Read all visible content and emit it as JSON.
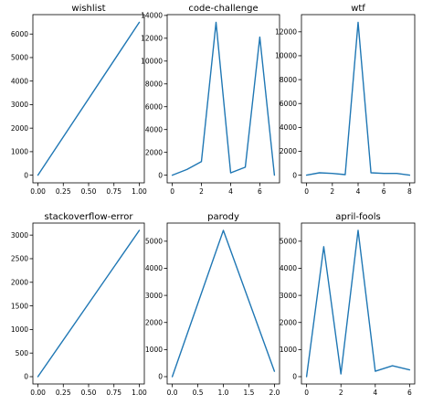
{
  "chart_data": [
    {
      "type": "line",
      "title": "wishlist",
      "x": [
        0,
        1
      ],
      "y": [
        0,
        6500
      ],
      "xlim": [
        -0.05,
        1.05
      ],
      "ylim": [
        -325,
        6825
      ],
      "xticks": [
        0.0,
        0.25,
        0.5,
        0.75,
        1.0
      ],
      "xtick_labels": [
        "0.00",
        "0.25",
        "0.50",
        "0.75",
        "1.00"
      ],
      "yticks": [
        0,
        1000,
        2000,
        3000,
        4000,
        5000,
        6000
      ],
      "ytick_labels": [
        "0",
        "1000",
        "2000",
        "3000",
        "4000",
        "5000",
        "6000"
      ],
      "color": "#1f77b4",
      "grid": false
    },
    {
      "type": "line",
      "title": "code-challenge",
      "x": [
        0,
        1,
        2,
        3,
        4,
        5,
        6,
        7
      ],
      "y": [
        0,
        500,
        1200,
        13400,
        200,
        700,
        12100,
        0
      ],
      "xlim": [
        -0.35,
        7.35
      ],
      "ylim": [
        -670,
        14070
      ],
      "xticks": [
        0,
        2,
        4,
        6
      ],
      "xtick_labels": [
        "0",
        "2",
        "4",
        "6"
      ],
      "yticks": [
        0,
        2000,
        4000,
        6000,
        8000,
        10000,
        12000,
        14000
      ],
      "ytick_labels": [
        "0",
        "2000",
        "4000",
        "6000",
        "8000",
        "10000",
        "12000",
        "14000"
      ],
      "color": "#1f77b4",
      "grid": false
    },
    {
      "type": "line",
      "title": "wtf",
      "x": [
        0,
        1,
        2,
        3,
        4,
        5,
        6,
        7,
        8
      ],
      "y": [
        0,
        200,
        150,
        50,
        12800,
        200,
        150,
        150,
        0
      ],
      "xlim": [
        -0.4,
        8.4
      ],
      "ylim": [
        -640,
        13440
      ],
      "xticks": [
        0,
        2,
        4,
        6,
        8
      ],
      "xtick_labels": [
        "0",
        "2",
        "4",
        "6",
        "8"
      ],
      "yticks": [
        0,
        2000,
        4000,
        6000,
        8000,
        10000,
        12000
      ],
      "ytick_labels": [
        "0",
        "2000",
        "4000",
        "6000",
        "8000",
        "10000",
        "12000"
      ],
      "color": "#1f77b4",
      "grid": false
    },
    {
      "type": "line",
      "title": "stackoverflow-error",
      "x": [
        0,
        1
      ],
      "y": [
        0,
        3100
      ],
      "xlim": [
        -0.05,
        1.05
      ],
      "ylim": [
        -155,
        3255
      ],
      "xticks": [
        0.0,
        0.25,
        0.5,
        0.75,
        1.0
      ],
      "xtick_labels": [
        "0.00",
        "0.25",
        "0.50",
        "0.75",
        "1.00"
      ],
      "yticks": [
        0,
        500,
        1000,
        1500,
        2000,
        2500,
        3000
      ],
      "ytick_labels": [
        "0",
        "500",
        "1000",
        "1500",
        "2000",
        "2500",
        "3000"
      ],
      "color": "#1f77b4",
      "grid": false
    },
    {
      "type": "line",
      "title": "parody",
      "x": [
        0,
        1,
        2
      ],
      "y": [
        0,
        5400,
        200
      ],
      "xlim": [
        -0.1,
        2.1
      ],
      "ylim": [
        -270,
        5670
      ],
      "xticks": [
        0.0,
        0.5,
        1.0,
        1.5,
        2.0
      ],
      "xtick_labels": [
        "0.0",
        "0.5",
        "1.0",
        "1.5",
        "2.0"
      ],
      "yticks": [
        0,
        1000,
        2000,
        3000,
        4000,
        5000
      ],
      "ytick_labels": [
        "0",
        "1000",
        "2000",
        "3000",
        "4000",
        "5000"
      ],
      "color": "#1f77b4",
      "grid": false
    },
    {
      "type": "line",
      "title": "april-fools",
      "x": [
        0,
        1,
        2,
        3,
        4,
        5,
        6
      ],
      "y": [
        0,
        4800,
        100,
        5400,
        200,
        400,
        250
      ],
      "xlim": [
        -0.3,
        6.3
      ],
      "ylim": [
        -270,
        5670
      ],
      "xticks": [
        0,
        2,
        4,
        6
      ],
      "xtick_labels": [
        "0",
        "2",
        "4",
        "6"
      ],
      "yticks": [
        0,
        1000,
        2000,
        3000,
        4000,
        5000
      ],
      "ytick_labels": [
        "0",
        "1000",
        "2000",
        "3000",
        "4000",
        "5000"
      ],
      "color": "#1f77b4",
      "grid": false
    }
  ]
}
